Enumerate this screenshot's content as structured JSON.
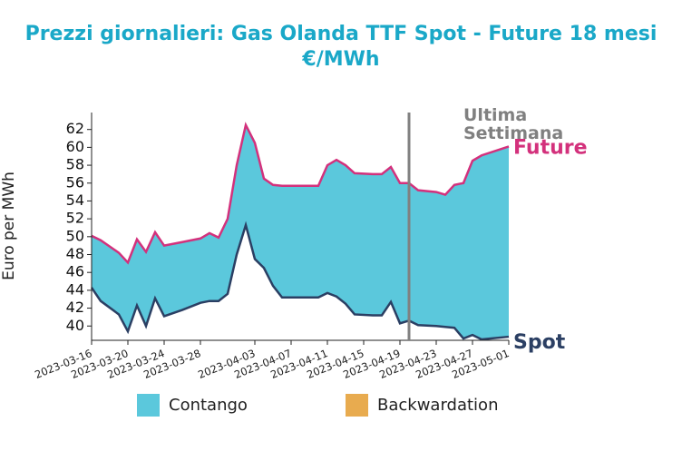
{
  "chart_data": {
    "type": "area-between",
    "title": "Prezzi giornalieri: Gas Olanda TTF Spot - Future 18 mesi",
    "subtitle": "€/MWh",
    "y_label": "Euro per MWh",
    "x": [
      "2023-03-16",
      "2023-03-17",
      "2023-03-19",
      "2023-03-20",
      "2023-03-21",
      "2023-03-22",
      "2023-03-23",
      "2023-03-24",
      "2023-03-26",
      "2023-03-28",
      "2023-03-29",
      "2023-03-30",
      "2023-03-31",
      "2023-04-01",
      "2023-04-02",
      "2023-04-03",
      "2023-04-04",
      "2023-04-05",
      "2023-04-06",
      "2023-04-10",
      "2023-04-11",
      "2023-04-12",
      "2023-04-13",
      "2023-04-14",
      "2023-04-16",
      "2023-04-17",
      "2023-04-18",
      "2023-04-19",
      "2023-04-20",
      "2023-04-21",
      "2023-04-23",
      "2023-04-24",
      "2023-04-25",
      "2023-04-26",
      "2023-04-27",
      "2023-04-28",
      "2023-05-01"
    ],
    "series": [
      {
        "name": "Future",
        "color": "#d3317c",
        "values": [
          50.1,
          49.6,
          48.2,
          47.1,
          49.7,
          48.3,
          50.5,
          49.0,
          49.4,
          49.8,
          50.4,
          49.9,
          52.0,
          58.0,
          62.5,
          60.5,
          56.5,
          55.8,
          55.7,
          55.7,
          58.0,
          58.6,
          58.0,
          57.1,
          57.0,
          57.0,
          57.8,
          56.0,
          56.0,
          55.2,
          55.0,
          54.7,
          55.8,
          56.0,
          58.5,
          59.1,
          60.1
        ]
      },
      {
        "name": "Spot",
        "color": "#2b3f63",
        "values": [
          44.3,
          42.8,
          41.3,
          39.4,
          42.3,
          40.0,
          43.1,
          41.1,
          41.8,
          42.6,
          42.8,
          42.8,
          43.6,
          48.0,
          51.3,
          47.5,
          46.5,
          44.5,
          43.2,
          43.2,
          43.7,
          43.3,
          42.5,
          41.3,
          41.2,
          41.2,
          42.7,
          40.3,
          40.6,
          40.1,
          40.0,
          39.9,
          39.8,
          38.6,
          39.0,
          38.5,
          38.8
        ]
      }
    ],
    "legend": [
      {
        "name": "Contango",
        "color": "#5bc8dc"
      },
      {
        "name": "Backwardation",
        "color": "#e8ab4f"
      }
    ],
    "vline": {
      "x": "2023-04-20",
      "label": "Ultima Settimana",
      "color": "#808080"
    },
    "xlim": [
      "2023-03-16",
      "2023-05-01"
    ],
    "xticks": [
      "2023-03-16",
      "2023-03-20",
      "2023-03-24",
      "2023-03-28",
      "2023-04-03",
      "2023-04-07",
      "2023-04-11",
      "2023-04-15",
      "2023-04-19",
      "2023-04-23",
      "2023-04-27",
      "2023-05-01"
    ],
    "ylim": [
      38.4,
      63.9
    ],
    "yticks": [
      40,
      42,
      44,
      46,
      48,
      50,
      52,
      54,
      56,
      58,
      60,
      62
    ]
  }
}
